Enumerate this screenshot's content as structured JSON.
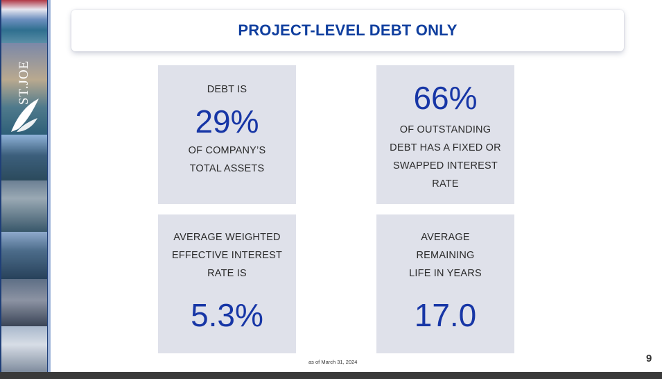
{
  "title": "PROJECT-LEVEL DEBT ONLY",
  "brand": {
    "logo_text": "ST.JOE"
  },
  "cards": [
    {
      "pre": "DEBT IS",
      "value": "29%",
      "post": [
        "OF COMPANY’S",
        "TOTAL ASSETS"
      ]
    },
    {
      "value": "66%",
      "post": [
        "OF OUTSTANDING",
        "DEBT HAS A FIXED OR",
        "SWAPPED INTEREST",
        "RATE"
      ]
    },
    {
      "pre": [
        "AVERAGE WEIGHTED",
        "EFFECTIVE INTEREST",
        "RATE IS"
      ],
      "value": "5.3%"
    },
    {
      "pre": [
        "AVERAGE",
        "REMAINING",
        "LIFE IN YEARS"
      ],
      "value": "17.0"
    }
  ],
  "footnote": "as of March 31, 2024",
  "page_number": "9"
}
